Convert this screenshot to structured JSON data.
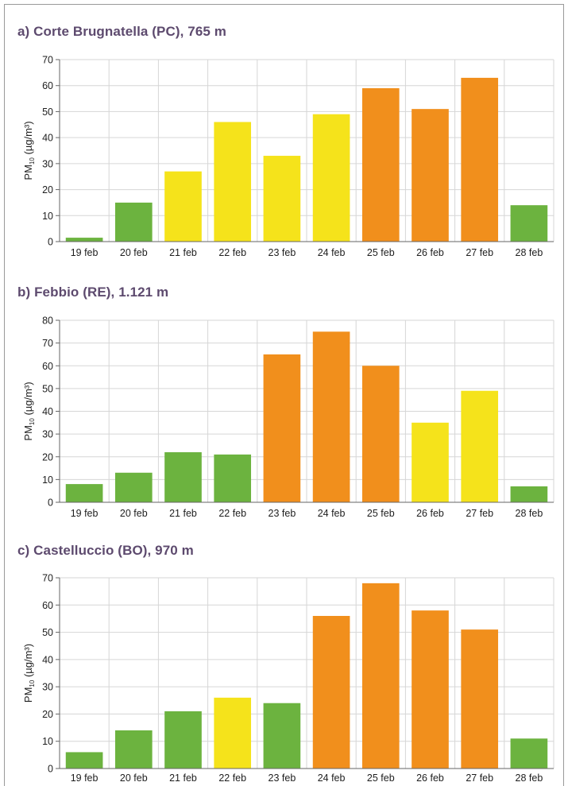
{
  "colors": {
    "green": "#6cb33f",
    "yellow": "#f5e31b",
    "orange": "#f18f1c",
    "title": "#5d4a6e",
    "grid": "#d6d6d6",
    "axis": "#666666"
  },
  "chart_data": [
    {
      "type": "bar",
      "title": "a) Corte Brugnatella (PC), 765 m",
      "ylabel": {
        "main": "PM",
        "sub": "10",
        "unit": "(µg/m³)"
      },
      "ylim": [
        0,
        70
      ],
      "yticks": [
        0,
        10,
        20,
        30,
        40,
        50,
        60,
        70
      ],
      "grid": true,
      "categories": [
        "19 feb",
        "20 feb",
        "21 feb",
        "22 feb",
        "23 feb",
        "24 feb",
        "25 feb",
        "26 feb",
        "27 feb",
        "28 feb"
      ],
      "values": [
        1.5,
        15,
        27,
        46,
        33,
        49,
        59,
        51,
        63,
        14
      ],
      "bar_colors": [
        "green",
        "green",
        "yellow",
        "yellow",
        "yellow",
        "yellow",
        "orange",
        "orange",
        "orange",
        "green"
      ]
    },
    {
      "type": "bar",
      "title": "b) Febbio (RE), 1.121 m",
      "ylabel": {
        "main": "PM",
        "sub": "10",
        "unit": "(µg/m³)"
      },
      "ylim": [
        0,
        80
      ],
      "yticks": [
        0,
        10,
        20,
        30,
        40,
        50,
        60,
        70,
        80
      ],
      "grid": true,
      "categories": [
        "19 feb",
        "20 feb",
        "21 feb",
        "22 feb",
        "23 feb",
        "24 feb",
        "25 feb",
        "26 feb",
        "27 feb",
        "28 feb"
      ],
      "values": [
        8,
        13,
        22,
        21,
        65,
        75,
        60,
        35,
        49,
        7
      ],
      "bar_colors": [
        "green",
        "green",
        "green",
        "green",
        "orange",
        "orange",
        "orange",
        "yellow",
        "yellow",
        "green"
      ]
    },
    {
      "type": "bar",
      "title": "c) Castelluccio (BO), 970 m",
      "ylabel": {
        "main": "PM",
        "sub": "10",
        "unit": "(µg/m³)"
      },
      "ylim": [
        0,
        70
      ],
      "yticks": [
        0,
        10,
        20,
        30,
        40,
        50,
        60,
        70
      ],
      "grid": true,
      "categories": [
        "19 feb",
        "20 feb",
        "21 feb",
        "22 feb",
        "23 feb",
        "24 feb",
        "25 feb",
        "26 feb",
        "27 feb",
        "28 feb"
      ],
      "values": [
        6,
        14,
        21,
        26,
        24,
        56,
        68,
        58,
        51,
        11
      ],
      "bar_colors": [
        "green",
        "green",
        "green",
        "yellow",
        "green",
        "orange",
        "orange",
        "orange",
        "orange",
        "green"
      ]
    }
  ]
}
